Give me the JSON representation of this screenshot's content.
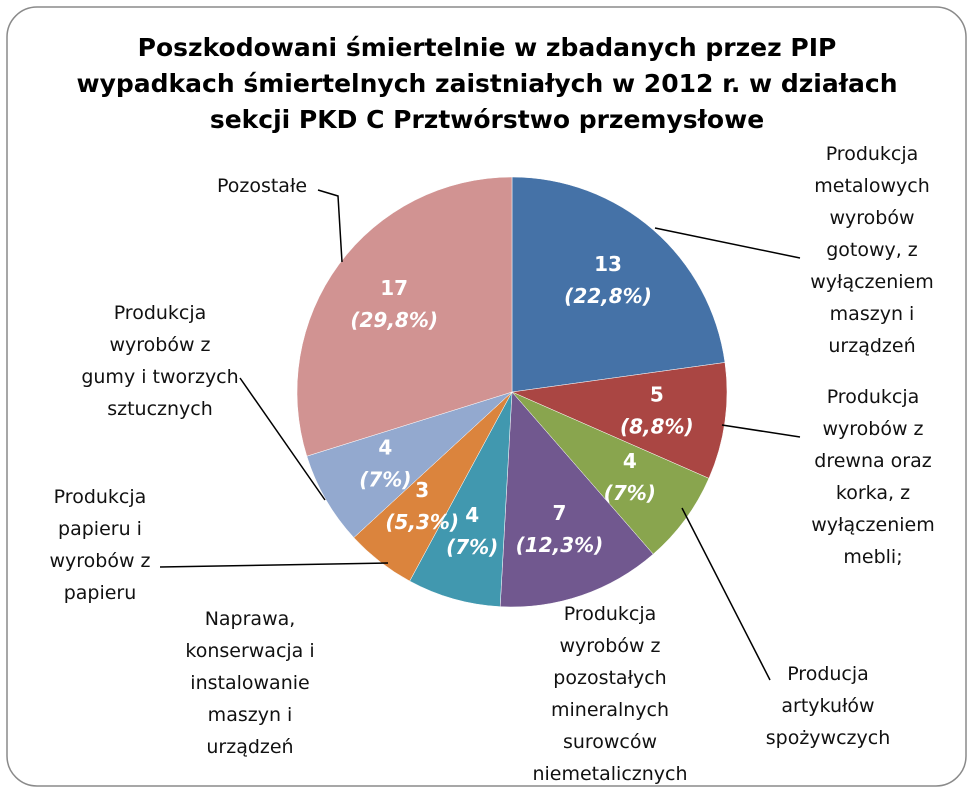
{
  "chart_data": {
    "type": "pie",
    "title": "Poszkodowani śmiertelnie w zbadanych przez PIP\nwypadkach śmiertelnych zaistniałych w 2012 r. w działach\nsekcji PKD C Prztwórstwo przemysłowe",
    "categories": [
      "Produkcja\nmetalowych\nwyrobów\ngotowy, z\nwyłączeniem\nmaszyn i\nurządzeń",
      "Produkcja\nwyrobów z\ndrewna oraz\nkorka, z\nwyłączeniem\nmebli;",
      "Producja\nartykułów\nspożywczych",
      "Produkcja\nwyrobów z\npozostałych\nmineralnych\nsurowców\nniemetalicznych",
      "Naprawa,\nkonserwacja i\ninstalowanie\nmaszyn i\nurządzeń",
      "Produkcja\npapieru i\nwyrobów z\npapieru",
      "Produkcja\nwyrobów z\ngumy i tworzych\nsztucznych",
      "Pozostałe"
    ],
    "values": [
      13,
      5,
      4,
      7,
      4,
      3,
      4,
      17
    ],
    "percentages": [
      22.8,
      8.8,
      7,
      12.3,
      7,
      5.3,
      7,
      29.8
    ],
    "percentage_labels": [
      "(22,8%)",
      "(8,8%)",
      "(7%)",
      "(12,3%)",
      "(7%)",
      "(5,3%)",
      "(7%)",
      "(29,8%)"
    ],
    "colors": [
      "#4572a7",
      "#aa4643",
      "#89a54e",
      "#71588f",
      "#4198af",
      "#db843d",
      "#93a9cf",
      "#d19392"
    ]
  }
}
